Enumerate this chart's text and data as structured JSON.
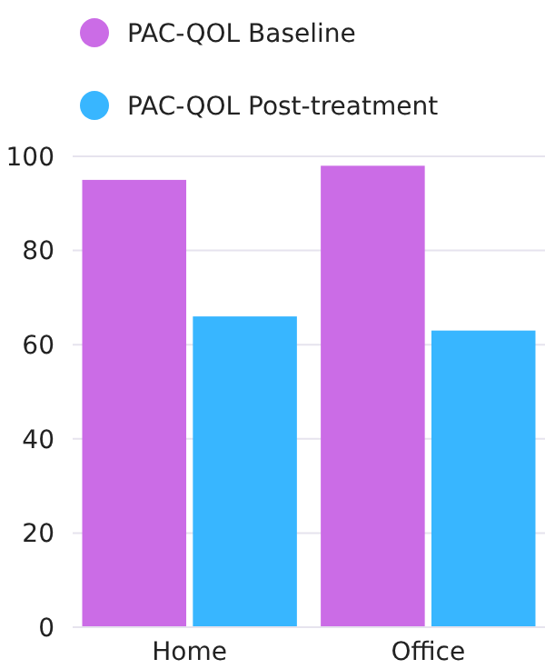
{
  "chart_data": {
    "type": "bar",
    "categories": [
      "Home",
      "Office"
    ],
    "series": [
      {
        "name": "PAC-QOL Baseline",
        "color": "#cb6ce6",
        "values": [
          95,
          98
        ]
      },
      {
        "name": "PAC-QOL Post-treatment",
        "color": "#38b6ff",
        "values": [
          66,
          63
        ]
      }
    ],
    "ylim": [
      0,
      100
    ],
    "yticks": [
      0,
      20,
      40,
      60,
      80,
      100
    ],
    "grid": "y",
    "legend": "top"
  }
}
